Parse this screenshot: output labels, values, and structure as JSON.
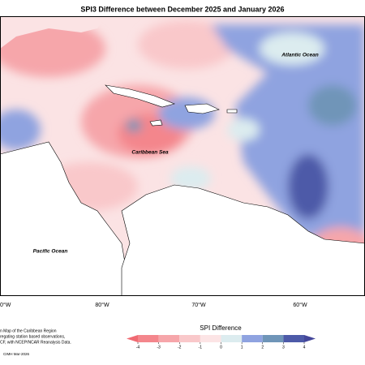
{
  "title": "SPI3 Difference between December 2025 and January 2026",
  "labels": {
    "atlantic": "Atlantic Ocean",
    "caribbean": "Caribbean Sea",
    "pacific": "Pacific Ocean"
  },
  "longitudes": [
    "0°W",
    "80°W",
    "70°W",
    "60°W"
  ],
  "notes": [
    "n Map of the Caribbean Region",
    "regating station based observations,",
    "CF, with NCEP/NCAR Reanalysis Data."
  ],
  "credit": "CIMH Mar-2026",
  "colorbar": {
    "title": "SPI Difference",
    "ticks": [
      -4,
      -3,
      -2,
      -1,
      0,
      1,
      2,
      3,
      4
    ],
    "colors": [
      "#f4868c",
      "#f6a6aa",
      "#f9c8ca",
      "#fce4e5",
      "#dcecef",
      "#8fa3e0",
      "#6f95b8",
      "#4d5aa8"
    ],
    "under_color": "#f06a72",
    "over_color": "#44479a"
  }
}
